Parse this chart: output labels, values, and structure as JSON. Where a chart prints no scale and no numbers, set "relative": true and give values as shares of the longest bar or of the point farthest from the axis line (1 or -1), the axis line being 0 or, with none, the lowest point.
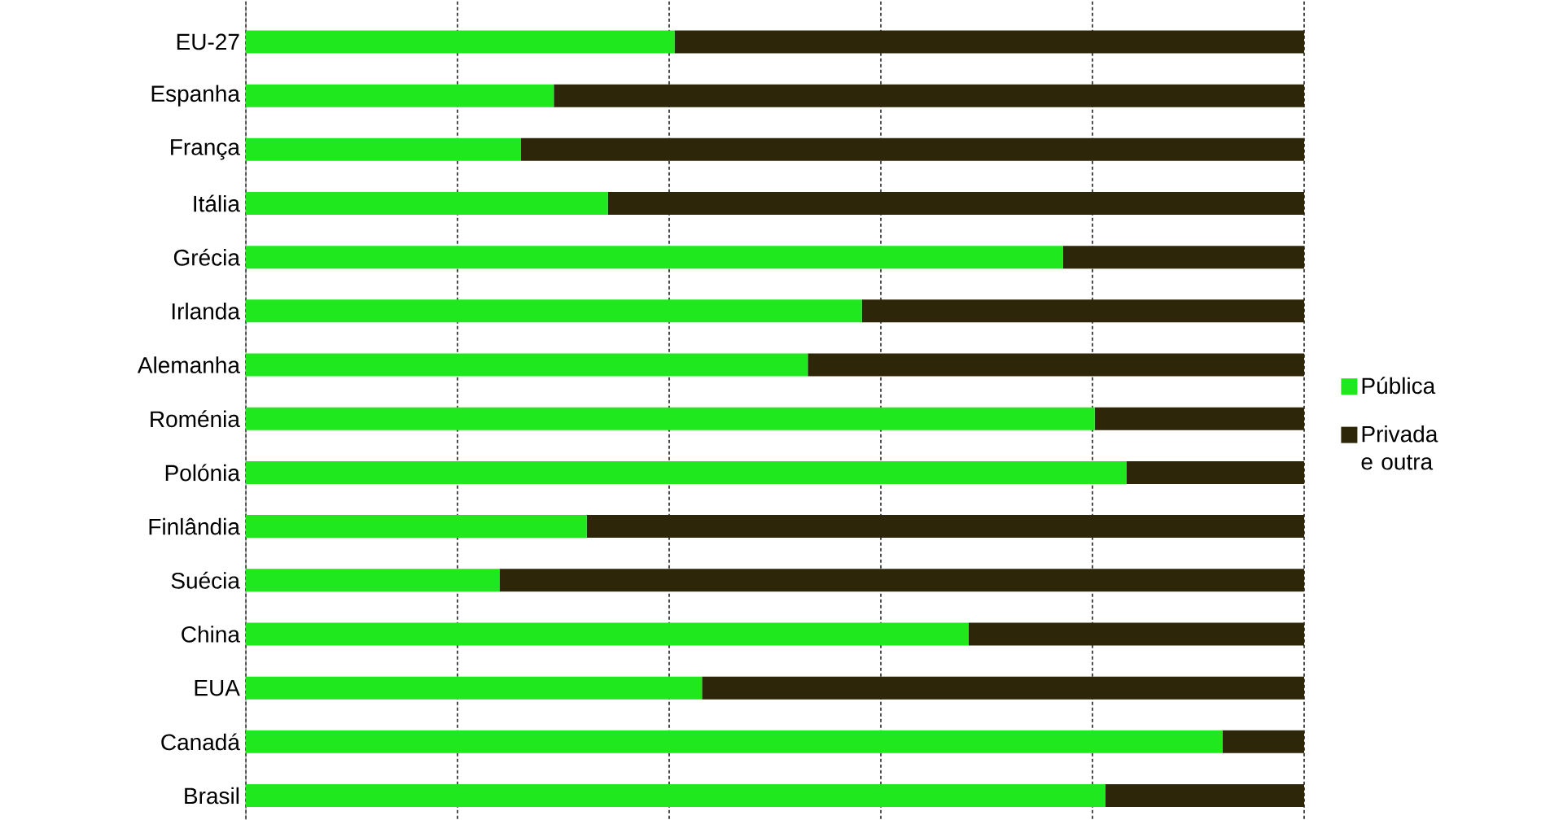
{
  "chart_data": {
    "type": "bar",
    "orientation": "horizontal",
    "stacked": true,
    "relative": true,
    "grid": "x",
    "legend": "right",
    "categories": [
      "EU-27",
      "Espanha",
      "França",
      "Itália",
      "Grécia",
      "Irlanda",
      "Alemanha",
      "Roménia",
      "Polónia",
      "Finlândia",
      "Suécia",
      "China",
      "EUA",
      "Canadá",
      "Brasil"
    ],
    "series": [
      {
        "name": "Pública",
        "color": "#1fe81f",
        "values": [
          0.405,
          0.291,
          0.26,
          0.342,
          0.772,
          0.582,
          0.531,
          0.802,
          0.832,
          0.322,
          0.24,
          0.683,
          0.431,
          0.923,
          0.812
        ]
      },
      {
        "name": "Privada e outra",
        "color": "#2e2608",
        "values": [
          0.595,
          0.709,
          0.74,
          0.658,
          0.228,
          0.418,
          0.469,
          0.198,
          0.168,
          0.678,
          0.76,
          0.317,
          0.569,
          0.077,
          0.188
        ]
      }
    ]
  }
}
